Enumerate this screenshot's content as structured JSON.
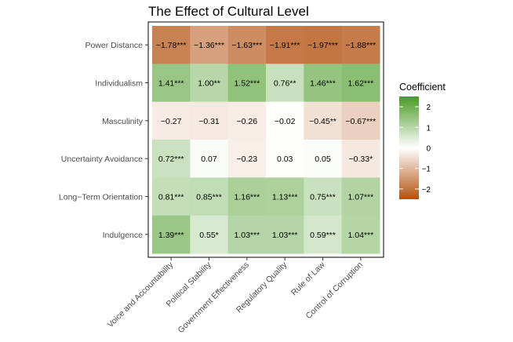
{
  "chart_data": {
    "type": "heatmap",
    "title": "The Effect of Cultural Level",
    "xlabel": "",
    "ylabel": "",
    "x_categories": [
      "Voice and Accountability",
      "Political Stability",
      "Government Effectiveness",
      "Regulatory Quality",
      "Rule of Law",
      "Control of Corruption"
    ],
    "y_categories": [
      "Power Distance",
      "Individualism",
      "Masculinity",
      "Uncertainty Avoidance",
      "Long−Term Orientation",
      "Indulgence"
    ],
    "values": [
      [
        -1.78,
        -1.36,
        -1.63,
        -1.91,
        -1.97,
        -1.88
      ],
      [
        1.41,
        1.0,
        1.52,
        0.76,
        1.46,
        1.62
      ],
      [
        -0.27,
        -0.31,
        -0.26,
        -0.02,
        -0.45,
        -0.67
      ],
      [
        0.72,
        0.07,
        -0.23,
        0.03,
        0.05,
        -0.33
      ],
      [
        0.81,
        0.85,
        1.16,
        1.13,
        0.75,
        1.07
      ],
      [
        1.39,
        0.55,
        1.03,
        1.03,
        0.59,
        1.04
      ]
    ],
    "labels": [
      [
        "−1.78***",
        "−1.36***",
        "−1.63***",
        "−1.91***",
        "−1.97***",
        "−1.88***"
      ],
      [
        "1.41***",
        "1.00**",
        "1.52***",
        "0.76**",
        "1.46***",
        "1.62***"
      ],
      [
        "−0.27",
        "−0.31",
        "−0.26",
        "−0.02",
        "−0.45**",
        "−0.67***"
      ],
      [
        "0.72***",
        "0.07",
        "−0.23",
        "0.03",
        "0.05",
        "−0.33*"
      ],
      [
        "0.81***",
        "0.85***",
        "1.16***",
        "1.13***",
        "0.75***",
        "1.07***"
      ],
      [
        "1.39***",
        "0.55*",
        "1.03***",
        "1.03***",
        "0.59***",
        "1.04***"
      ]
    ],
    "legend": {
      "title": "Coefficient",
      "ticks": [
        2,
        1,
        0,
        -1,
        -2
      ],
      "tick_labels": [
        "2",
        "1",
        "0",
        "−1",
        "−2"
      ],
      "range": [
        -2.5,
        2.5
      ],
      "placement": "right"
    },
    "colors": {
      "high": "#4a9a25",
      "mid": "#ffffff",
      "low": "#b3500f"
    }
  }
}
